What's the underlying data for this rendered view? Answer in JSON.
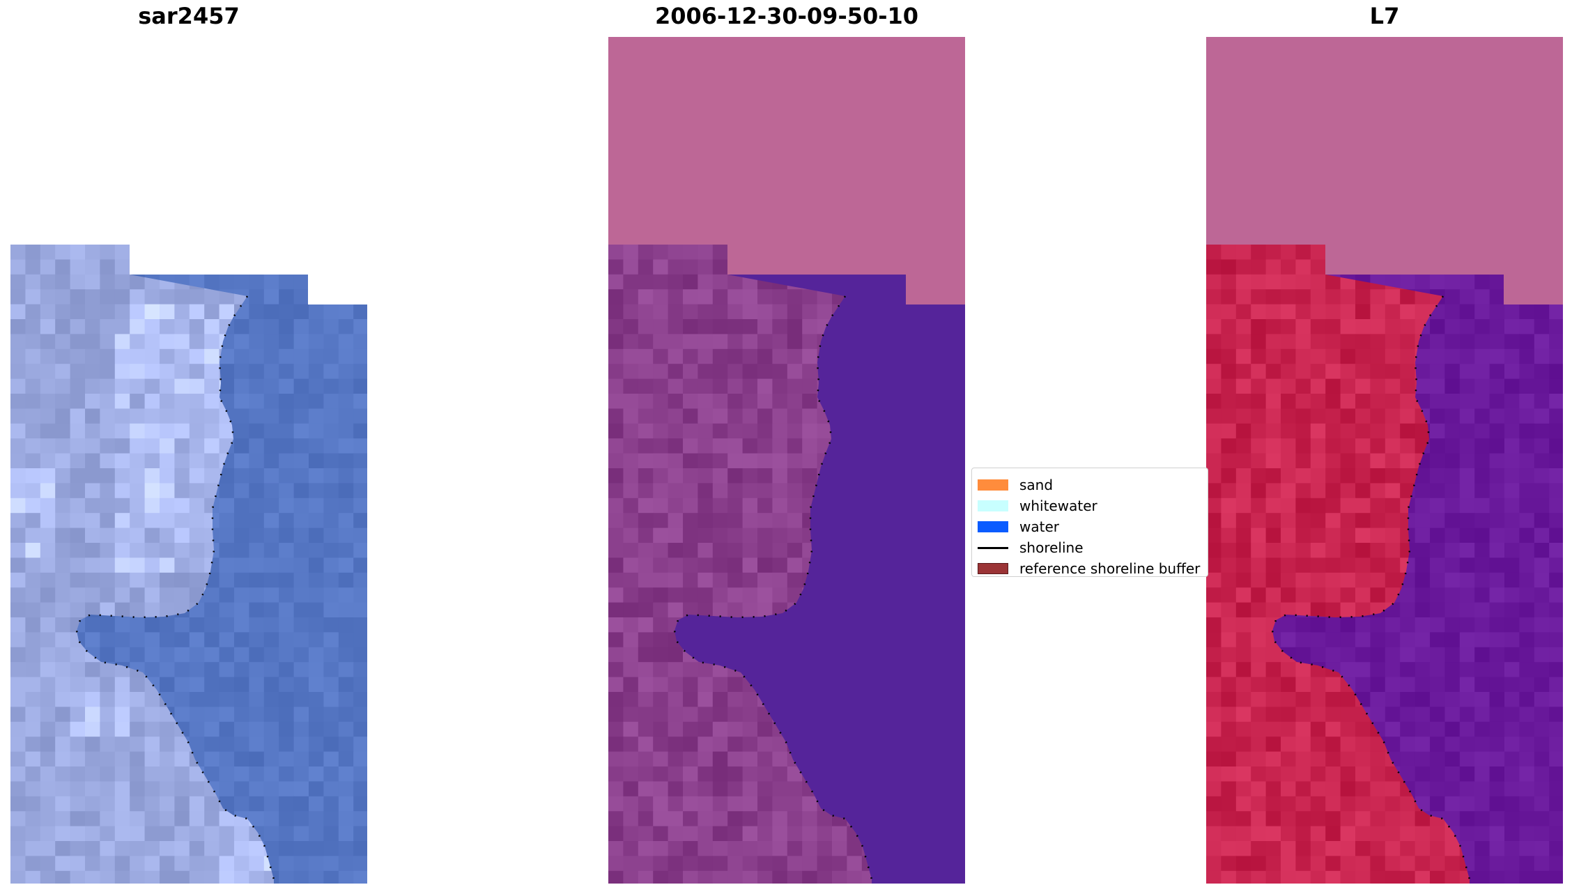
{
  "panels": [
    {
      "title": "sar2457"
    },
    {
      "title": "2006-12-30-09-50-10"
    },
    {
      "title": "L7"
    }
  ],
  "legend": {
    "items": [
      {
        "label": "sand",
        "color": "#ff8c3c",
        "kind": "patch"
      },
      {
        "label": "whitewater",
        "color": "#c8ffff",
        "kind": "patch"
      },
      {
        "label": "water",
        "color": "#0a5cff",
        "kind": "patch"
      },
      {
        "label": "shoreline",
        "color": "#000000",
        "kind": "line"
      },
      {
        "label": "reference shoreline buffer",
        "color": "#9b3436",
        "kind": "patch"
      }
    ]
  },
  "colors": {
    "nodata": "#bd6796",
    "rgb_land": "#9aa8de",
    "rgb_water": "#5677c4",
    "classified_land": "#8a3f8c",
    "classified_water": "#55249a",
    "ndwi_land": "#c8244f",
    "ndwi_water": "#6a1a9c"
  }
}
